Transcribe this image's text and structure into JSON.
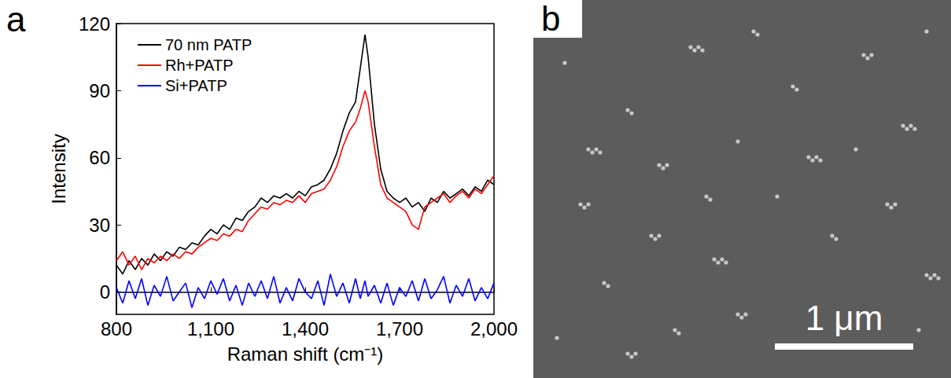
{
  "chart_data": {
    "type": "line",
    "panel_label": "a",
    "xlabel": "Raman shift (cm⁻¹)",
    "ylabel": "Intensity",
    "xlim": [
      800,
      2000
    ],
    "xticks": [
      800,
      1100,
      1400,
      1700,
      2000
    ],
    "ylim": [
      -10,
      120
    ],
    "yticks": [
      0,
      30,
      60,
      90,
      120
    ],
    "grid": false,
    "legend": "upper left",
    "x": [
      800,
      820,
      840,
      860,
      880,
      900,
      920,
      940,
      960,
      980,
      1000,
      1020,
      1040,
      1060,
      1080,
      1100,
      1120,
      1140,
      1160,
      1180,
      1200,
      1220,
      1240,
      1260,
      1280,
      1300,
      1320,
      1340,
      1360,
      1380,
      1400,
      1420,
      1440,
      1460,
      1480,
      1500,
      1520,
      1540,
      1560,
      1575,
      1590,
      1600,
      1620,
      1640,
      1660,
      1680,
      1700,
      1720,
      1740,
      1760,
      1780,
      1800,
      1820,
      1840,
      1860,
      1880,
      1900,
      1920,
      1940,
      1960,
      1980,
      2000
    ],
    "series": [
      {
        "name": "70 nm PATP",
        "color": "#000000",
        "line_style": "solid",
        "values": [
          12,
          8,
          14,
          10,
          15,
          12,
          17,
          14,
          18,
          16,
          20,
          19,
          22,
          21,
          25,
          28,
          26,
          30,
          28,
          33,
          32,
          36,
          38,
          42,
          40,
          43,
          42,
          44,
          42,
          45,
          43,
          47,
          48,
          50,
          55,
          62,
          72,
          80,
          85,
          100,
          115,
          105,
          75,
          55,
          45,
          42,
          40,
          42,
          38,
          40,
          36,
          42,
          40,
          45,
          42,
          44,
          46,
          43,
          47,
          45,
          50,
          48
        ]
      },
      {
        "name": "Rh+PATP",
        "color": "#ff0000",
        "line_style": "solid",
        "values": [
          14,
          18,
          12,
          16,
          10,
          15,
          13,
          16,
          14,
          17,
          15,
          18,
          17,
          20,
          22,
          24,
          23,
          26,
          25,
          28,
          27,
          32,
          35,
          38,
          37,
          40,
          39,
          41,
          40,
          43,
          40,
          44,
          45,
          46,
          50,
          56,
          65,
          72,
          76,
          82,
          90,
          85,
          65,
          48,
          42,
          40,
          38,
          36,
          30,
          28,
          38,
          40,
          42,
          44,
          40,
          43,
          45,
          42,
          46,
          44,
          48,
          52
        ]
      },
      {
        "name": "Si+PATP",
        "color": "#0000ff",
        "line_style": "solid",
        "values": [
          2,
          -5,
          5,
          -3,
          6,
          -6,
          3,
          -2,
          7,
          -4,
          0,
          4,
          -7,
          2,
          -3,
          5,
          -1,
          6,
          -4,
          3,
          -6,
          4,
          -2,
          5,
          -3,
          7,
          -5,
          2,
          -4,
          6,
          0,
          -3,
          5,
          -6,
          8,
          -2,
          4,
          -5,
          6,
          -3,
          5,
          -2,
          3,
          -5,
          4,
          -6,
          2,
          -2,
          5,
          -4,
          6,
          -3,
          1,
          7,
          -5,
          3,
          -2,
          6,
          -4,
          2,
          -3,
          4
        ]
      }
    ]
  },
  "image_panel": {
    "panel_label": "b",
    "scale_bar_label": "1 μm"
  }
}
